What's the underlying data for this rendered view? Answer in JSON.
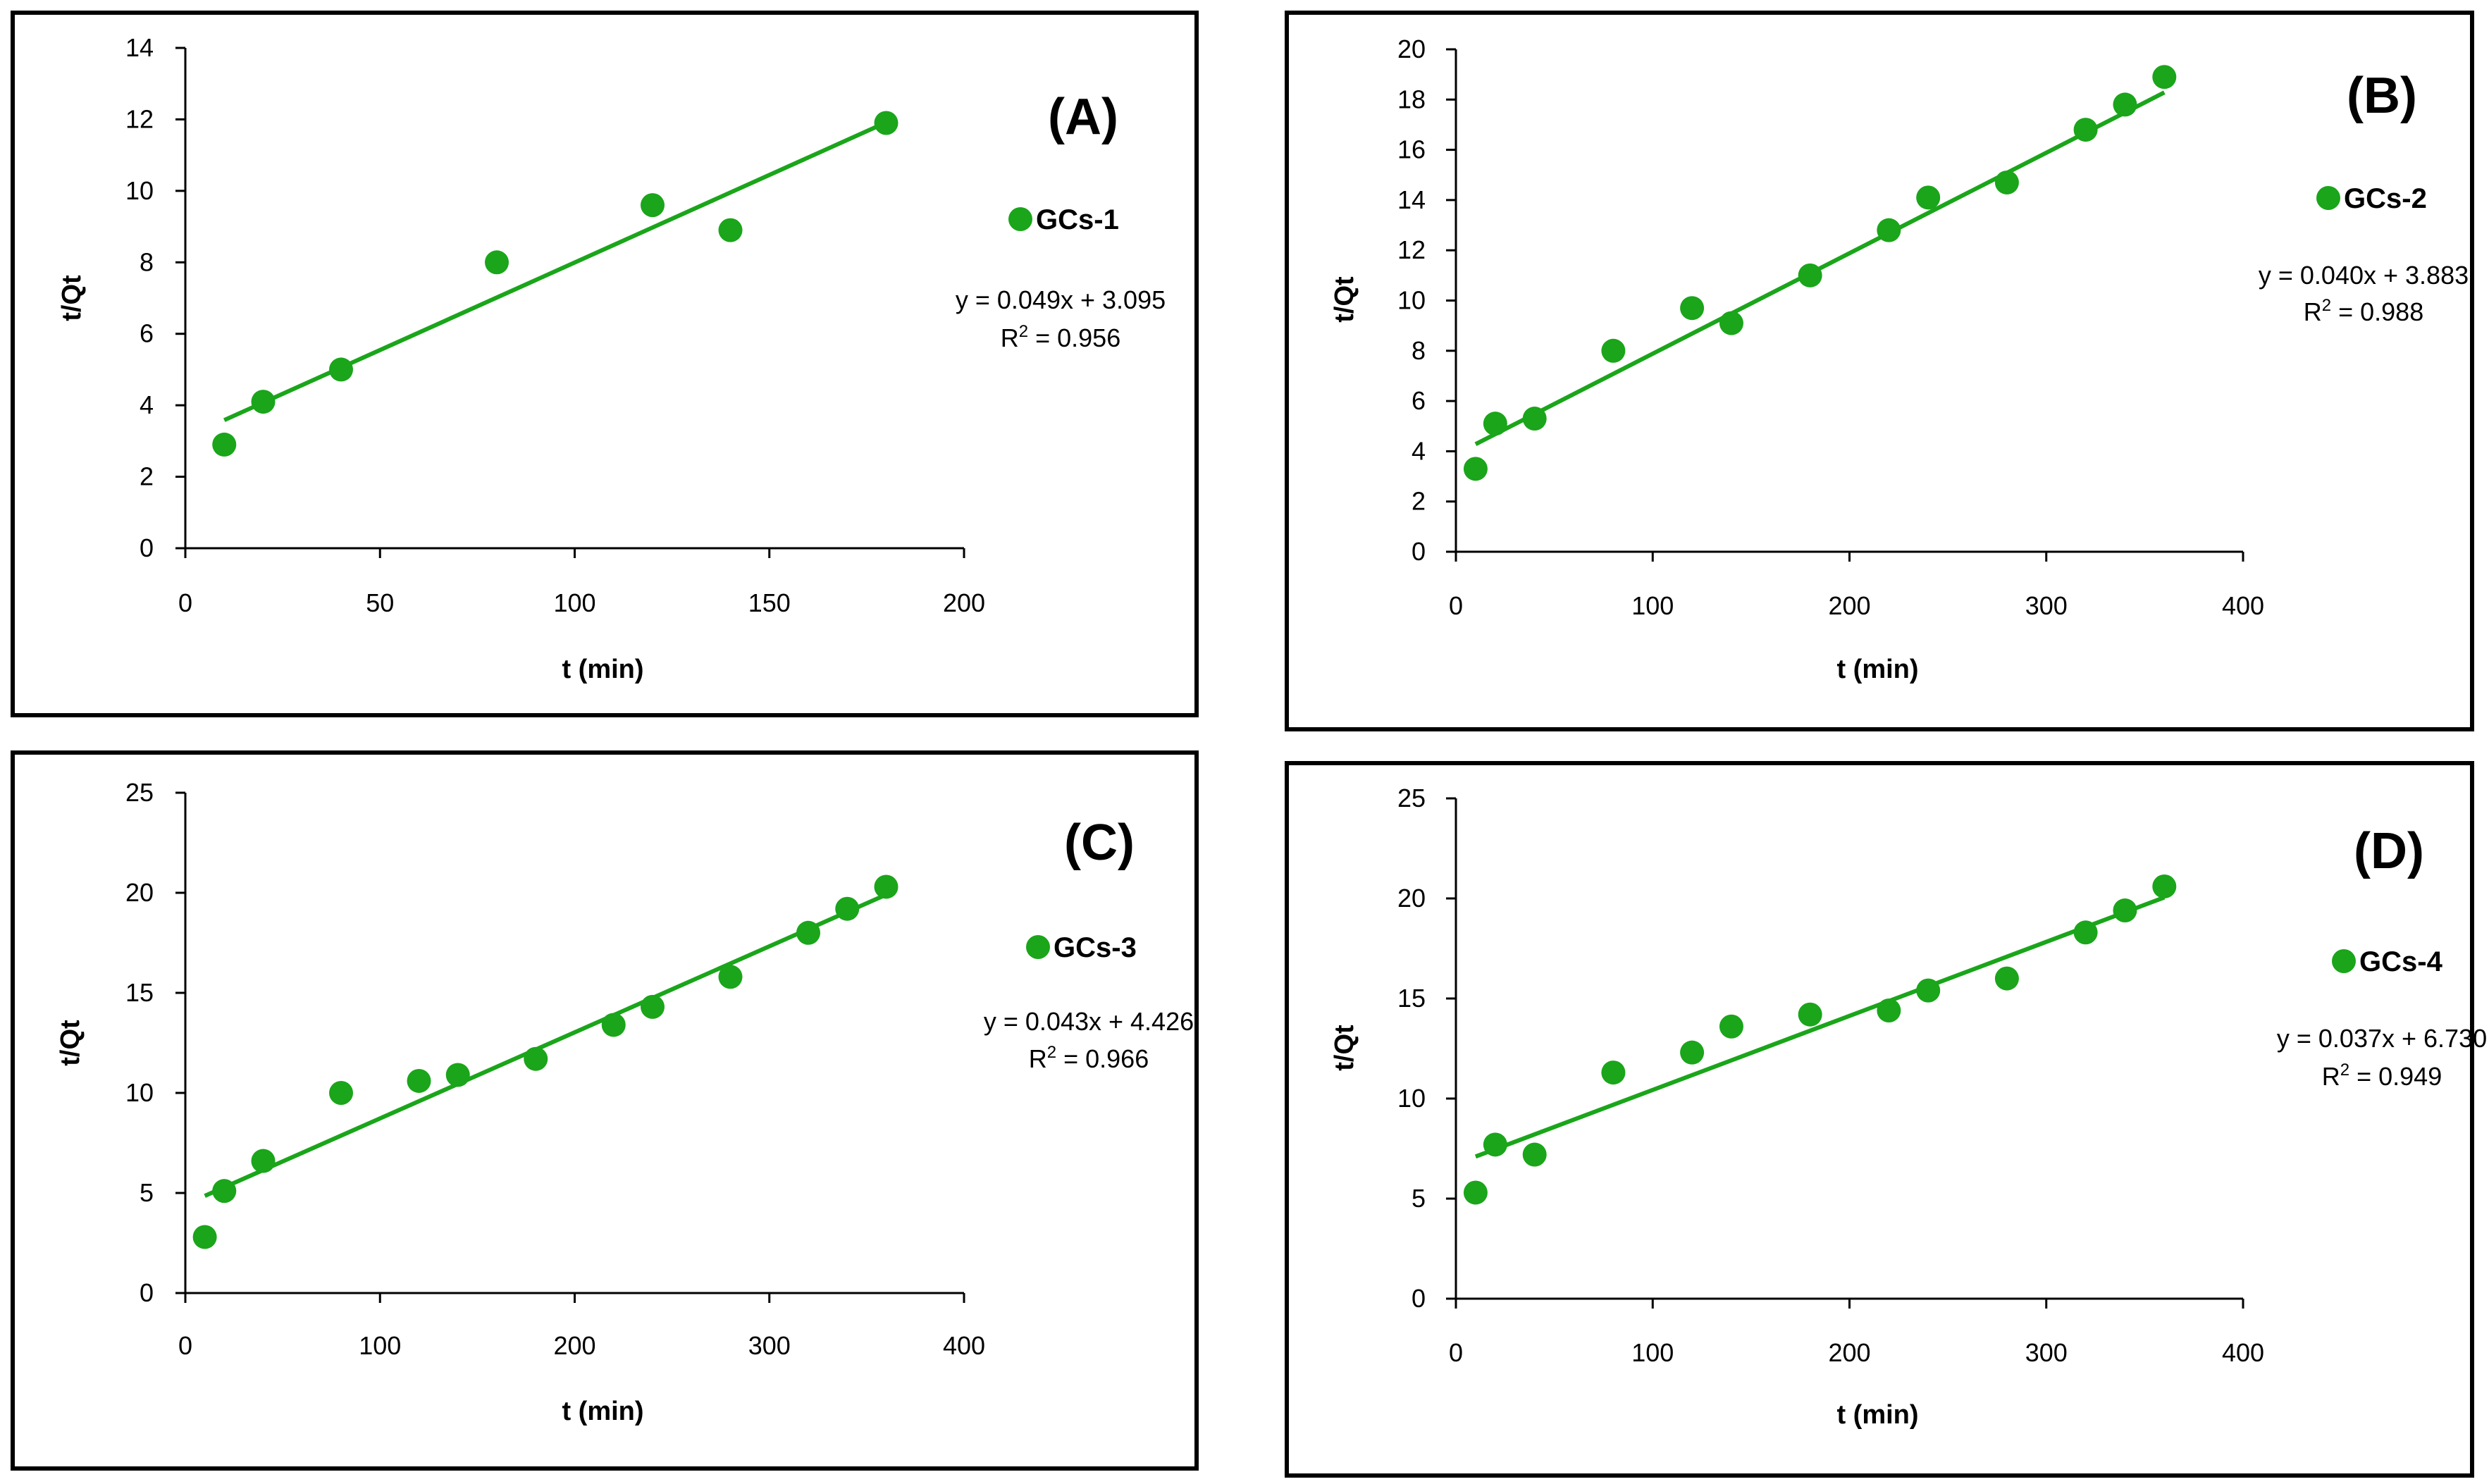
{
  "colors": {
    "series": "#1aa51a",
    "frame": "#000000",
    "axis": "#000000"
  },
  "chart_data": [
    {
      "type": "scatter",
      "panel_label": "(A)",
      "legend": "GCs-1",
      "equation": "y = 0.049x + 3.095",
      "r2_prefix": "R",
      "r2_sup": "2",
      "r2_value": " = 0.956",
      "xlabel": "t (min)",
      "ylabel": "t/Qt",
      "xlim": [
        0,
        200
      ],
      "ylim": [
        0,
        14
      ],
      "xticks": [
        0,
        50,
        100,
        150,
        200
      ],
      "yticks": [
        0,
        2,
        4,
        6,
        8,
        10,
        12,
        14
      ],
      "x": [
        10,
        20,
        40,
        80,
        120,
        140,
        180
      ],
      "y": [
        2.9,
        4.1,
        5.0,
        8.0,
        9.6,
        8.9,
        11.9
      ],
      "fit": {
        "slope": 0.049,
        "intercept": 3.095,
        "x_range": [
          10,
          180
        ]
      }
    },
    {
      "type": "scatter",
      "panel_label": "(B)",
      "legend": "GCs-2",
      "equation": "y = 0.040x + 3.883",
      "r2_prefix": "R",
      "r2_sup": "2",
      "r2_value": " = 0.988",
      "xlabel": "t (min)",
      "ylabel": "t/Qt",
      "xlim": [
        0,
        400
      ],
      "ylim": [
        0,
        20
      ],
      "xticks": [
        0,
        100,
        200,
        300,
        400
      ],
      "yticks": [
        0,
        2,
        4,
        6,
        8,
        10,
        12,
        14,
        16,
        18,
        20
      ],
      "x": [
        10,
        20,
        40,
        80,
        120,
        140,
        180,
        220,
        240,
        280,
        320,
        340,
        360
      ],
      "y": [
        3.3,
        5.1,
        5.3,
        8.0,
        9.7,
        9.1,
        11.0,
        12.8,
        14.1,
        14.7,
        16.8,
        17.8,
        18.9
      ],
      "fit": {
        "slope": 0.04,
        "intercept": 3.883,
        "x_range": [
          10,
          360
        ]
      }
    },
    {
      "type": "scatter",
      "panel_label": "(C)",
      "legend": "GCs-3",
      "equation": "y = 0.043x + 4.426",
      "r2_prefix": "R",
      "r2_sup": "2",
      "r2_value": " = 0.966",
      "xlabel": "t (min)",
      "ylabel": "t/Qt",
      "xlim": [
        0,
        400
      ],
      "ylim": [
        0,
        25
      ],
      "xticks": [
        0,
        100,
        200,
        300,
        400
      ],
      "yticks": [
        0,
        5,
        10,
        15,
        20,
        25
      ],
      "x": [
        10,
        20,
        40,
        80,
        120,
        140,
        180,
        220,
        240,
        280,
        320,
        340,
        360
      ],
      "y": [
        2.8,
        5.1,
        6.6,
        10.0,
        10.6,
        10.9,
        11.7,
        13.4,
        14.3,
        15.8,
        18.0,
        19.2,
        20.3
      ],
      "fit": {
        "slope": 0.043,
        "intercept": 4.426,
        "x_range": [
          10,
          360
        ]
      }
    },
    {
      "type": "scatter",
      "panel_label": "(D)",
      "legend": "GCs-4",
      "equation": "y = 0.037x + 6.730",
      "r2_prefix": "R",
      "r2_sup": "2",
      "r2_value": " = 0.949",
      "xlabel": "t (min)",
      "ylabel": "t/Qt",
      "xlim": [
        0,
        400
      ],
      "ylim": [
        0,
        25
      ],
      "xticks": [
        0,
        100,
        200,
        300,
        400
      ],
      "yticks": [
        0,
        5,
        10,
        15,
        20,
        25
      ],
      "x": [
        10,
        20,
        40,
        80,
        120,
        140,
        180,
        220,
        240,
        280,
        320,
        340,
        360
      ],
      "y": [
        5.3,
        7.7,
        7.2,
        11.3,
        12.3,
        13.6,
        14.2,
        14.4,
        15.4,
        16.0,
        18.3,
        19.4,
        20.6
      ],
      "fit": {
        "slope": 0.037,
        "intercept": 6.73,
        "x_range": [
          10,
          360
        ]
      }
    }
  ]
}
